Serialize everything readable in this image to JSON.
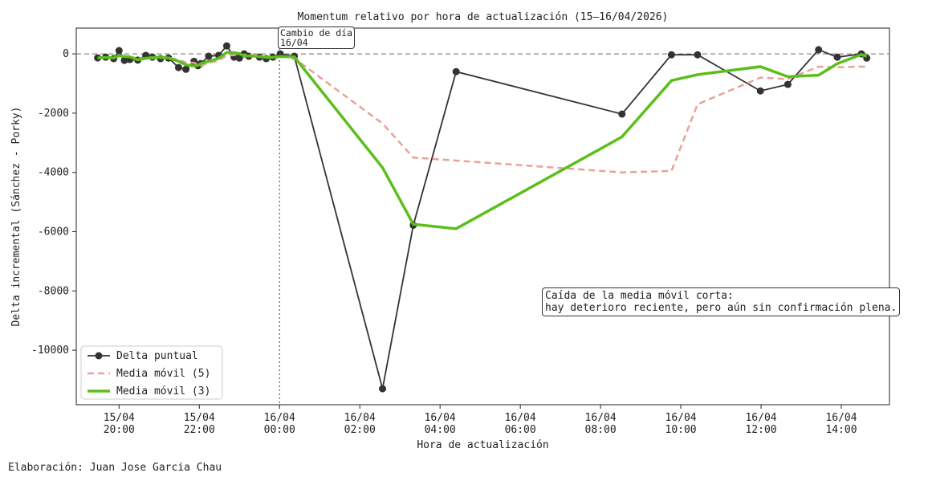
{
  "chart_data": {
    "type": "line",
    "title": "Momentum relativo por hora de actualización (15–16/04/2026)",
    "x_label": "Hora de actualización",
    "y_label": "Delta incremental (Sánchez - Porky)",
    "footer": "Elaboración: Juan Jose Garcia Chau",
    "x": [
      "2026-04-15T19:28",
      "2026-04-15T19:40",
      "2026-04-15T19:52",
      "2026-04-15T20:00",
      "2026-04-15T20:08",
      "2026-04-15T20:16",
      "2026-04-15T20:28",
      "2026-04-15T20:40",
      "2026-04-15T20:50",
      "2026-04-15T21:02",
      "2026-04-15T21:14",
      "2026-04-15T21:29",
      "2026-04-15T21:40",
      "2026-04-15T21:52",
      "2026-04-15T21:58",
      "2026-04-15T22:02",
      "2026-04-15T22:14",
      "2026-04-15T22:29",
      "2026-04-15T22:41",
      "2026-04-15T22:52",
      "2026-04-15T23:00",
      "2026-04-15T23:07",
      "2026-04-15T23:14",
      "2026-04-15T23:30",
      "2026-04-15T23:40",
      "2026-04-15T23:50",
      "2026-04-16T00:01",
      "2026-04-16T00:22",
      "2026-04-16T02:34",
      "2026-04-16T03:20",
      "2026-04-16T04:24",
      "2026-04-16T08:32",
      "2026-04-16T09:46",
      "2026-04-16T10:25",
      "2026-04-16T11:59",
      "2026-04-16T12:40",
      "2026-04-16T13:26",
      "2026-04-16T13:54",
      "2026-04-16T14:30",
      "2026-04-16T14:38"
    ],
    "series": [
      {
        "name": "Delta puntual",
        "color": "#333333",
        "width": 1.8,
        "dash": false,
        "marker": true,
        "values": [
          -135,
          -110,
          -160,
          110,
          -220,
          -190,
          -210,
          -50,
          -110,
          -160,
          -140,
          -460,
          -520,
          -250,
          -400,
          -330,
          -80,
          -50,
          270,
          -110,
          -140,
          0,
          -80,
          -110,
          -160,
          -110,
          0,
          -80,
          -11300,
          -5780,
          -600,
          -2030,
          -30,
          -30,
          -1250,
          -1030,
          140,
          -110,
          0,
          -140
        ]
      },
      {
        "name": "Media móvil (5)",
        "color": "#e8a29c",
        "width": 2.5,
        "dash": true,
        "marker": false,
        "values": [
          -135,
          -120,
          -130,
          -90,
          -100,
          -110,
          -140,
          -150,
          -150,
          -140,
          -130,
          -190,
          -290,
          -300,
          -360,
          -400,
          -300,
          -230,
          -60,
          -40,
          -20,
          -30,
          -10,
          -70,
          -100,
          -100,
          -80,
          -150,
          -2350,
          -3500,
          -3600,
          -4000,
          -3950,
          -1700,
          -800,
          -850,
          -430,
          -450,
          -430,
          -430
        ]
      },
      {
        "name": "Media móvil (3)",
        "color": "#5bbf1a",
        "width": 3.5,
        "dash": false,
        "marker": true,
        "marker_hidden": true,
        "values": [
          -135,
          -120,
          -135,
          -50,
          -90,
          -100,
          -200,
          -150,
          -120,
          -110,
          -140,
          -250,
          -370,
          -410,
          -390,
          -330,
          -250,
          -150,
          50,
          40,
          10,
          -80,
          -70,
          -90,
          -120,
          -120,
          -90,
          -100,
          -3840,
          -5750,
          -5900,
          -2800,
          -900,
          -700,
          -430,
          -770,
          -720,
          -330,
          -20,
          -80
        ]
      }
    ],
    "xlim": [
      "2026-04-15T18:56",
      "2026-04-16T15:12"
    ],
    "xticks": [
      {
        "value": "2026-04-15T20:00",
        "label": "15/04\n20:00"
      },
      {
        "value": "2026-04-15T22:00",
        "label": "15/04\n22:00"
      },
      {
        "value": "2026-04-16T00:00",
        "label": "16/04\n00:00"
      },
      {
        "value": "2026-04-16T02:00",
        "label": "16/04\n02:00"
      },
      {
        "value": "2026-04-16T04:00",
        "label": "16/04\n04:00"
      },
      {
        "value": "2026-04-16T06:00",
        "label": "16/04\n06:00"
      },
      {
        "value": "2026-04-16T08:00",
        "label": "16/04\n08:00"
      },
      {
        "value": "2026-04-16T10:00",
        "label": "16/04\n10:00"
      },
      {
        "value": "2026-04-16T12:00",
        "label": "16/04\n12:00"
      },
      {
        "value": "2026-04-16T14:00",
        "label": "16/04\n14:00"
      }
    ],
    "ylim": [
      -11840,
      870
    ],
    "yticks": [
      -10000,
      -8000,
      -6000,
      -4000,
      -2000,
      0
    ],
    "reference_line": 0,
    "day_change": {
      "x": "2026-04-16T00:00",
      "text": "Cambio de día\n16/04"
    },
    "note": "Caída de la media móvil corta:\nhay deterioro reciente, pero aún sin confirmación plena.",
    "legend": "lower left"
  }
}
